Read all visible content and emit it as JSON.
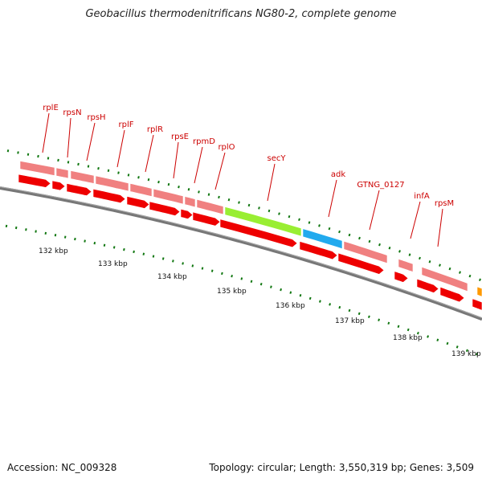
{
  "title": "Geobacillus thermodenitrificans NG80-2, complete genome",
  "footer": {
    "accession": "Accession: NC_009328",
    "summary": "Topology: circular; Length: 3,550,319 bp; Genes: 3,509"
  },
  "colors": {
    "cds": "#ee0000",
    "gene": "#f08080",
    "secy_highlight": "#99ee33",
    "adk_highlight": "#22aaee",
    "edge_feature": "#ff9900",
    "backbone": "#777777",
    "tick": "#117711",
    "label": "#cc0000"
  },
  "gene_labels": [
    {
      "name": "rplE"
    },
    {
      "name": "rpsN"
    },
    {
      "name": "rpsH"
    },
    {
      "name": "rplF"
    },
    {
      "name": "rplR"
    },
    {
      "name": "rpsE"
    },
    {
      "name": "rpmD"
    },
    {
      "name": "rplO"
    },
    {
      "name": "secY"
    },
    {
      "name": "adk"
    },
    {
      "name": "GTNG_0127"
    },
    {
      "name": "infA"
    },
    {
      "name": "rpsM"
    }
  ],
  "scale_labels": [
    "132 kbp",
    "133 kbp",
    "134 kbp",
    "135 kbp",
    "136 kbp",
    "137 kbp",
    "138 kbp",
    "139 kbp"
  ]
}
